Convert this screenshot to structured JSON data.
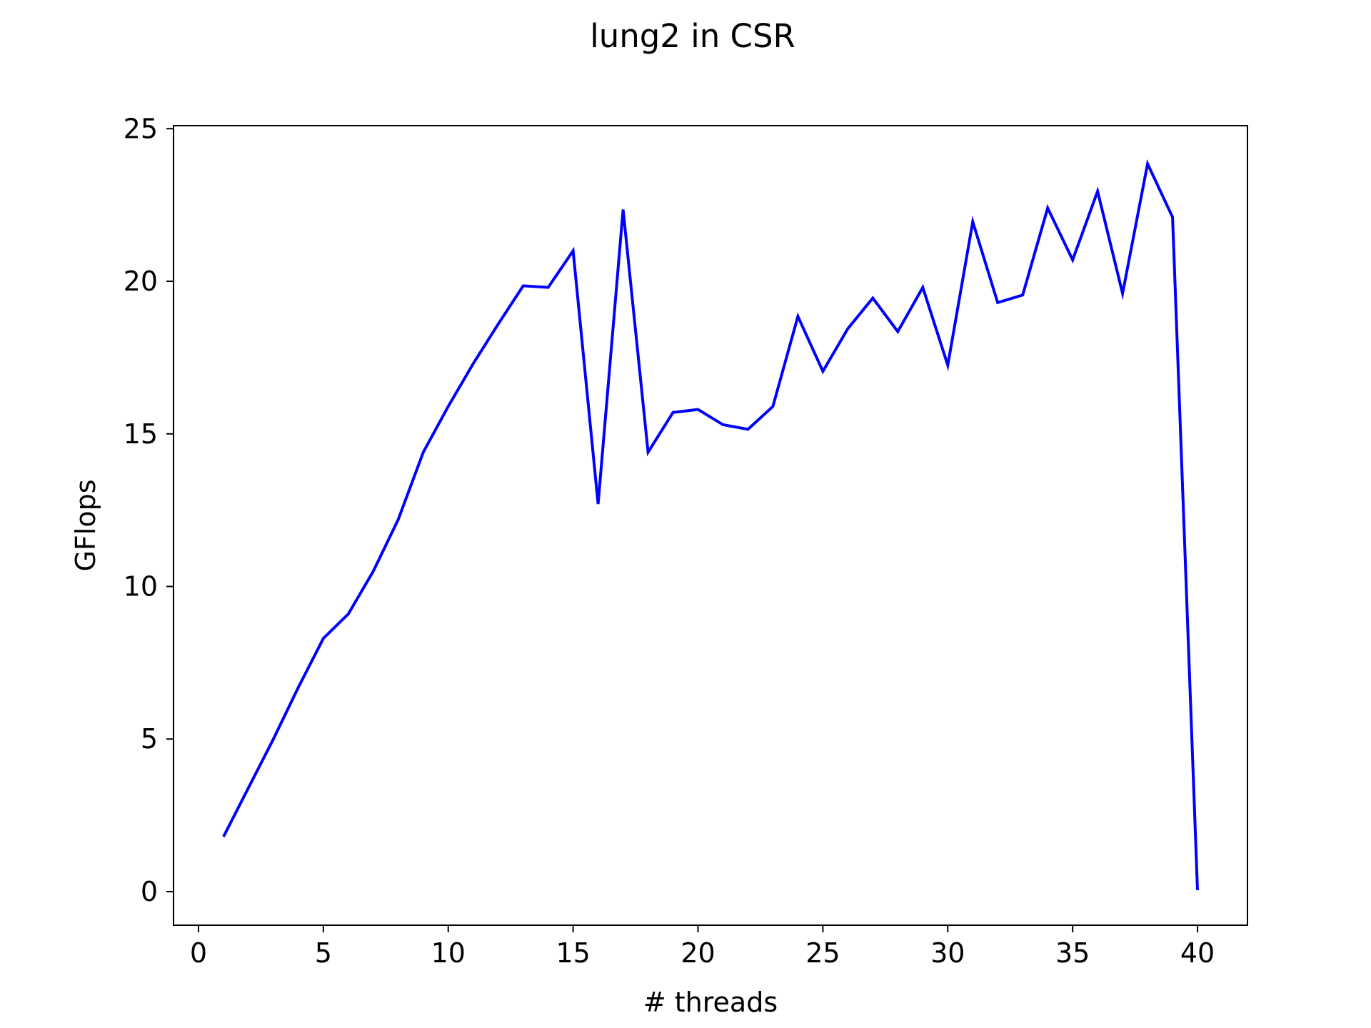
{
  "chart_data": {
    "type": "line",
    "title": "lung2 in CSR",
    "xlabel": "# threads",
    "ylabel": "GFlops",
    "xlim": [
      -1,
      42
    ],
    "ylim": [
      -1.1,
      25.1
    ],
    "x_ticks": [
      0,
      5,
      10,
      15,
      20,
      25,
      30,
      35,
      40
    ],
    "y_ticks": [
      0,
      5,
      10,
      15,
      20,
      25
    ],
    "grid": false,
    "legend": "none",
    "line_color": "#0000ff",
    "series": [
      {
        "x": [
          1,
          2,
          3,
          4,
          5,
          6,
          7,
          8,
          9,
          10,
          11,
          12,
          13,
          14,
          15,
          16,
          17,
          18,
          19,
          20,
          21,
          22,
          23,
          24,
          25,
          26,
          27,
          28,
          29,
          30,
          31,
          32,
          33,
          34,
          35,
          36,
          37,
          38,
          39,
          40
        ],
        "values": [
          1.8,
          3.4,
          5.0,
          6.7,
          8.3,
          9.1,
          10.5,
          12.2,
          14.4,
          15.9,
          17.3,
          18.6,
          19.85,
          19.8,
          21.0,
          12.7,
          22.35,
          14.4,
          15.7,
          15.8,
          15.3,
          15.15,
          15.9,
          18.85,
          17.05,
          18.45,
          19.45,
          18.35,
          19.8,
          17.25,
          21.95,
          19.3,
          19.55,
          22.4,
          20.7,
          22.95,
          19.6,
          23.85,
          22.1,
          0.05
        ]
      }
    ]
  }
}
